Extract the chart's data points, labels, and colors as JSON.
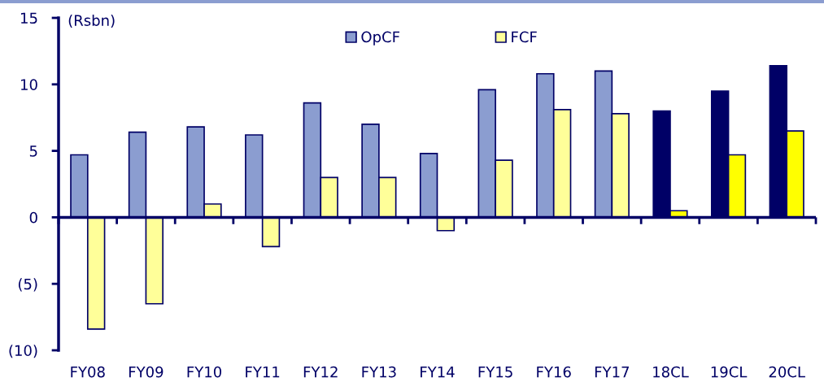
{
  "chart_data": {
    "type": "bar",
    "ylabel": "(Rsbn)",
    "categories": [
      "FY08",
      "FY09",
      "FY10",
      "FY11",
      "FY12",
      "FY13",
      "FY14",
      "FY15",
      "FY16",
      "FY17",
      "18CL",
      "19CL",
      "20CL"
    ],
    "series": [
      {
        "name": "OpCF",
        "color": "#8b9dd0",
        "colors": [
          "#8b9dd0",
          "#8b9dd0",
          "#8b9dd0",
          "#8b9dd0",
          "#8b9dd0",
          "#8b9dd0",
          "#8b9dd0",
          "#8b9dd0",
          "#8b9dd0",
          "#8b9dd0",
          "#000066",
          "#000066",
          "#000066"
        ],
        "values": [
          4.7,
          6.4,
          6.8,
          6.2,
          8.6,
          7.0,
          4.8,
          9.6,
          10.8,
          11.0,
          8.0,
          9.5,
          11.4
        ]
      },
      {
        "name": "FCF",
        "color": "#ffff99",
        "colors": [
          "#ffff99",
          "#ffff99",
          "#ffff99",
          "#ffff99",
          "#ffff99",
          "#ffff99",
          "#ffff99",
          "#ffff99",
          "#ffff99",
          "#ffff99",
          "#ffff00",
          "#ffff00",
          "#ffff00"
        ],
        "values": [
          -8.4,
          -6.5,
          1.0,
          -2.2,
          3.0,
          3.0,
          -1.0,
          4.3,
          8.1,
          7.8,
          0.5,
          4.7,
          6.5
        ]
      }
    ],
    "ylim": [
      -10,
      15
    ],
    "yticks": [
      {
        "value": -10,
        "label": "(10)"
      },
      {
        "value": -5,
        "label": "(5)"
      },
      0,
      5,
      10,
      15
    ],
    "ref_lines": [
      {
        "axis": "y",
        "value": 0,
        "color": "#000066"
      }
    ],
    "legend": "top"
  }
}
